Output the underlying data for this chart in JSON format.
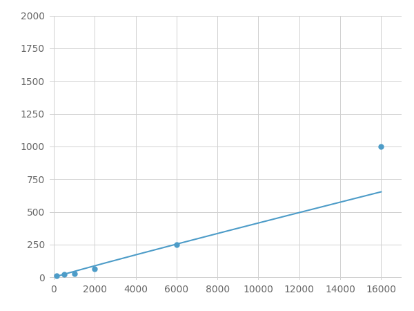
{
  "x_data": [
    125,
    500,
    1000,
    2000,
    6000,
    16000
  ],
  "y_data": [
    10,
    20,
    28,
    65,
    250,
    1000
  ],
  "line_color": "#4d9cc8",
  "marker_color": "#4d9cc8",
  "marker_size": 5,
  "xlim": [
    -200,
    17000
  ],
  "ylim": [
    -20,
    2000
  ],
  "xticks": [
    0,
    2000,
    4000,
    6000,
    8000,
    10000,
    12000,
    14000,
    16000
  ],
  "yticks": [
    0,
    250,
    500,
    750,
    1000,
    1250,
    1500,
    1750,
    2000
  ],
  "grid_color": "#d0d0d0",
  "bg_color": "#ffffff",
  "fig_bg_color": "#ffffff",
  "linewidth": 1.5,
  "tick_fontsize": 10
}
